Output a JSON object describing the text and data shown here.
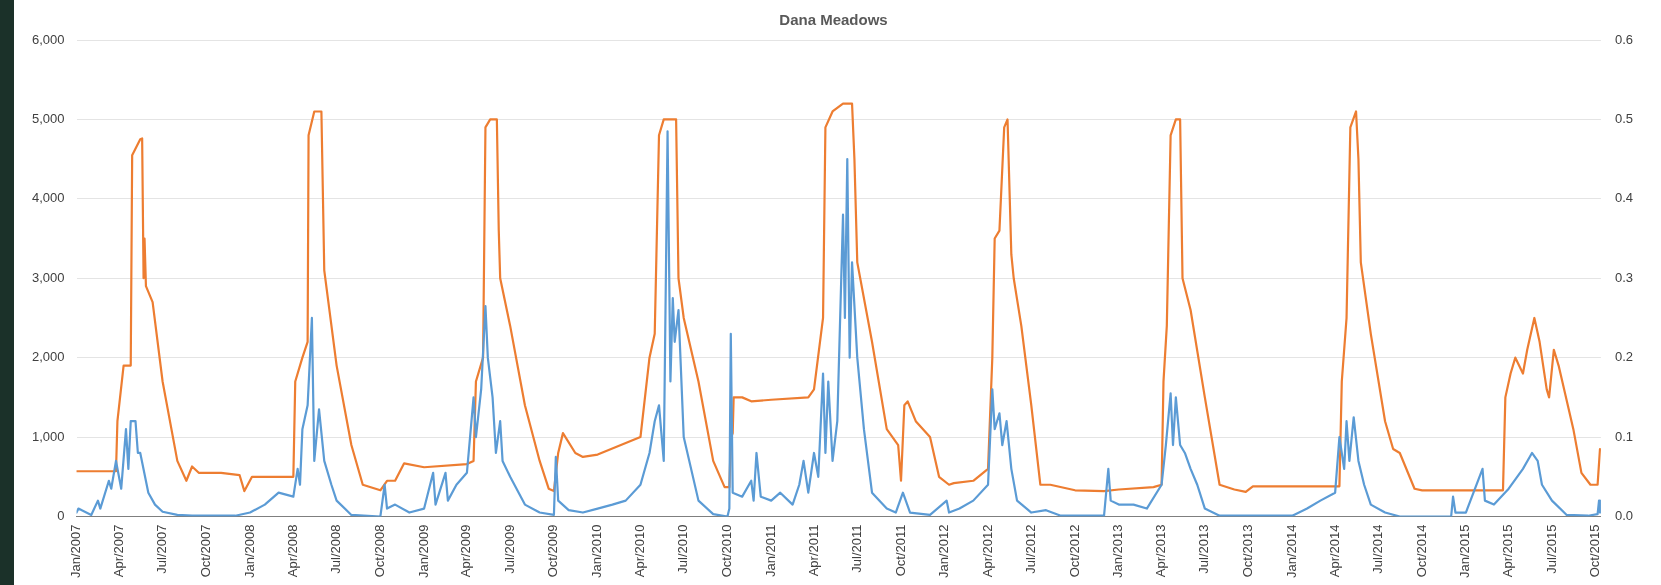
{
  "chart_data": {
    "type": "line",
    "title": "Dana Meadows",
    "grid": "y",
    "line_style": "solid",
    "marker": "none",
    "xlim": [
      "2007-01-01",
      "2015-10-12"
    ],
    "xticks": [
      {
        "value": "2007-01",
        "label": "Jan/2007"
      },
      {
        "value": "2007-04",
        "label": "Apr/2007"
      },
      {
        "value": "2007-07",
        "label": "Jul/2007"
      },
      {
        "value": "2007-10",
        "label": "Oct/2007"
      },
      {
        "value": "2008-01",
        "label": "Jan/2008"
      },
      {
        "value": "2008-04",
        "label": "Apr/2008"
      },
      {
        "value": "2008-07",
        "label": "Jul/2008"
      },
      {
        "value": "2008-10",
        "label": "Oct/2008"
      },
      {
        "value": "2009-01",
        "label": "Jan/2009"
      },
      {
        "value": "2009-04",
        "label": "Apr/2009"
      },
      {
        "value": "2009-07",
        "label": "Jul/2009"
      },
      {
        "value": "2009-10",
        "label": "Oct/2009"
      },
      {
        "value": "2010-01",
        "label": "Jan/2010"
      },
      {
        "value": "2010-04",
        "label": "Apr/2010"
      },
      {
        "value": "2010-07",
        "label": "Jul/2010"
      },
      {
        "value": "2010-10",
        "label": "Oct/2010"
      },
      {
        "value": "2011-01",
        "label": "Jan/2011"
      },
      {
        "value": "2011-04",
        "label": "Apr/2011"
      },
      {
        "value": "2011-07",
        "label": "Jul/2011"
      },
      {
        "value": "2011-10",
        "label": "Oct/2011"
      },
      {
        "value": "2012-01",
        "label": "Jan/2012"
      },
      {
        "value": "2012-04",
        "label": "Apr/2012"
      },
      {
        "value": "2012-07",
        "label": "Jul/2012"
      },
      {
        "value": "2012-10",
        "label": "Oct/2012"
      },
      {
        "value": "2013-01",
        "label": "Jan/2013"
      },
      {
        "value": "2013-04",
        "label": "Apr/2013"
      },
      {
        "value": "2013-07",
        "label": "Jul/2013"
      },
      {
        "value": "2013-10",
        "label": "Oct/2013"
      },
      {
        "value": "2014-01",
        "label": "Jan/2014"
      },
      {
        "value": "2014-04",
        "label": "Apr/2014"
      },
      {
        "value": "2014-07",
        "label": "Jul/2014"
      },
      {
        "value": "2014-10",
        "label": "Oct/2014"
      },
      {
        "value": "2015-01",
        "label": "Jan/2015"
      },
      {
        "value": "2015-04",
        "label": "Apr/2015"
      },
      {
        "value": "2015-07",
        "label": "Jul/2015"
      },
      {
        "value": "2015-10",
        "label": "Oct/2015"
      }
    ],
    "ylim": [
      0,
      6000
    ],
    "yticks": [
      {
        "value": 0,
        "label": "0"
      },
      {
        "value": 1000,
        "label": "1,000"
      },
      {
        "value": 2000,
        "label": "2,000"
      },
      {
        "value": 3000,
        "label": "3,000"
      },
      {
        "value": 4000,
        "label": "4,000"
      },
      {
        "value": 5000,
        "label": "5,000"
      },
      {
        "value": 6000,
        "label": "6,000"
      }
    ],
    "y2lim": [
      0,
      0.6
    ],
    "y2ticks": [
      {
        "value": 0,
        "label": "0.0"
      },
      {
        "value": 0.1,
        "label": "0.1"
      },
      {
        "value": 0.2,
        "label": "0.2"
      },
      {
        "value": 0.3,
        "label": "0.3"
      },
      {
        "value": 0.4,
        "label": "0.4"
      },
      {
        "value": 0.5,
        "label": "0.5"
      },
      {
        "value": 0.6,
        "label": "0.6"
      }
    ],
    "series": [
      {
        "color": "#5b9bd5",
        "x": [
          "2007-01-01",
          "2007-01-05",
          "2007-02-01",
          "2007-02-15",
          "2007-02-20",
          "2007-03-10",
          "2007-03-15",
          "2007-03-25",
          "2007-04-05",
          "2007-04-15",
          "2007-04-20",
          "2007-04-25",
          "2007-05-05",
          "2007-05-10",
          "2007-05-15",
          "2007-06-01",
          "2007-06-15",
          "2007-07-01",
          "2007-08-01",
          "2007-09-01",
          "2007-12-01",
          "2008-01-01",
          "2008-02-01",
          "2008-03-01",
          "2008-04-01",
          "2008-04-10",
          "2008-04-15",
          "2008-04-20",
          "2008-05-01",
          "2008-05-10",
          "2008-05-15",
          "2008-05-25",
          "2008-06-05",
          "2008-06-20",
          "2008-07-01",
          "2008-08-01",
          "2008-10-01",
          "2008-10-10",
          "2008-10-15",
          "2008-11-01",
          "2008-12-01",
          "2009-01-01",
          "2009-01-20",
          "2009-01-25",
          "2009-02-15",
          "2009-02-20",
          "2009-03-10",
          "2009-04-01",
          "2009-04-15",
          "2009-04-20",
          "2009-05-01",
          "2009-05-10",
          "2009-05-15",
          "2009-05-25",
          "2009-06-01",
          "2009-06-10",
          "2009-06-15",
          "2009-07-01",
          "2009-08-01",
          "2009-09-01",
          "2009-10-01",
          "2009-10-05",
          "2009-10-10",
          "2009-11-01",
          "2009-12-01",
          "2010-01-01",
          "2010-02-01",
          "2010-03-01",
          "2010-04-01",
          "2010-04-20",
          "2010-05-01",
          "2010-05-10",
          "2010-05-20",
          "2010-05-28",
          "2010-06-03",
          "2010-06-08",
          "2010-06-12",
          "2010-06-20",
          "2010-07-01",
          "2010-08-01",
          "2010-09-01",
          "2010-10-01",
          "2010-10-05",
          "2010-10-08",
          "2010-10-12",
          "2010-11-01",
          "2010-11-20",
          "2010-11-25",
          "2010-12-01",
          "2010-12-10",
          "2011-01-01",
          "2011-01-20",
          "2011-02-15",
          "2011-03-01",
          "2011-03-10",
          "2011-03-20",
          "2011-04-01",
          "2011-04-10",
          "2011-04-20",
          "2011-04-25",
          "2011-05-01",
          "2011-05-10",
          "2011-05-20",
          "2011-06-01",
          "2011-06-05",
          "2011-06-10",
          "2011-06-15",
          "2011-06-20",
          "2011-07-01",
          "2011-07-15",
          "2011-08-01",
          "2011-09-01",
          "2011-09-20",
          "2011-10-05",
          "2011-10-20",
          "2011-12-01",
          "2012-01-05",
          "2012-01-10",
          "2012-02-01",
          "2012-03-01",
          "2012-04-01",
          "2012-04-10",
          "2012-04-15",
          "2012-04-25",
          "2012-05-01",
          "2012-05-10",
          "2012-05-20",
          "2012-06-01",
          "2012-07-01",
          "2012-08-01",
          "2012-09-01",
          "2012-12-01",
          "2012-12-10",
          "2012-12-15",
          "2013-01-01",
          "2013-02-01",
          "2013-03-01",
          "2013-04-01",
          "2013-04-10",
          "2013-04-20",
          "2013-04-25",
          "2013-05-01",
          "2013-05-10",
          "2013-05-20",
          "2013-06-01",
          "2013-06-15",
          "2013-07-01",
          "2013-08-01",
          "2014-01-01",
          "2014-02-01",
          "2014-03-01",
          "2014-04-01",
          "2014-04-10",
          "2014-04-20",
          "2014-04-25",
          "2014-05-01",
          "2014-05-10",
          "2014-05-20",
          "2014-06-01",
          "2014-06-15",
          "2014-07-15",
          "2014-08-15",
          "2014-12-01",
          "2014-12-05",
          "2014-12-10",
          "2015-01-01",
          "2015-02-05",
          "2015-02-10",
          "2015-03-01",
          "2015-04-01",
          "2015-05-01",
          "2015-05-20",
          "2015-06-01",
          "2015-06-10",
          "2015-07-01",
          "2015-08-01",
          "2015-09-15",
          "2015-10-05",
          "2015-10-08",
          "2015-10-10"
        ],
        "values": [
          50,
          100,
          20,
          200,
          100,
          450,
          350,
          700,
          350,
          1100,
          600,
          1200,
          1200,
          800,
          800,
          300,
          150,
          60,
          20,
          10,
          10,
          50,
          150,
          300,
          250,
          600,
          400,
          1100,
          1400,
          2500,
          700,
          1350,
          700,
          400,
          200,
          20,
          0,
          400,
          100,
          150,
          50,
          100,
          550,
          150,
          550,
          200,
          400,
          550,
          1500,
          1000,
          1600,
          2650,
          2000,
          1500,
          800,
          1200,
          700,
          500,
          150,
          50,
          20,
          750,
          200,
          80,
          50,
          100,
          150,
          200,
          400,
          800,
          1200,
          1400,
          700,
          4850,
          1700,
          2750,
          2200,
          2600,
          1000,
          200,
          30,
          0,
          100,
          2300,
          300,
          250,
          450,
          200,
          800,
          250,
          200,
          300,
          150,
          400,
          700,
          300,
          800,
          500,
          1800,
          800,
          1700,
          700,
          1200,
          3800,
          2500,
          4500,
          2000,
          3200,
          2000,
          1100,
          300,
          100,
          50,
          300,
          50,
          20,
          200,
          50,
          100,
          200,
          400,
          1600,
          1100,
          1300,
          900,
          1200,
          600,
          200,
          50,
          80,
          10,
          10,
          600,
          200,
          150,
          150,
          100,
          400,
          900,
          1550,
          900,
          1500,
          900,
          800,
          600,
          400,
          100,
          10,
          10,
          100,
          200,
          300,
          1000,
          600,
          1200,
          700,
          1250,
          700,
          400,
          150,
          50,
          0,
          0,
          250,
          50,
          50,
          600,
          200,
          150,
          350,
          600,
          800,
          700,
          400,
          200,
          20,
          10,
          30,
          200,
          50
        ]
      },
      {
        "color": "#ed7d31",
        "axis": "y2",
        "x": [
          "2007-01-01",
          "2007-03-25",
          "2007-03-28",
          "2007-04-10",
          "2007-04-25",
          "2007-04-28",
          "2007-05-15",
          "2007-05-19",
          "2007-05-22",
          "2007-05-24",
          "2007-05-27",
          "2007-06-10",
          "2007-07-01",
          "2007-08-01",
          "2007-08-20",
          "2007-09-01",
          "2007-09-15",
          "2007-11-01",
          "2007-12-10",
          "2007-12-20",
          "2008-01-05",
          "2008-04-01",
          "2008-04-05",
          "2008-04-20",
          "2008-05-01",
          "2008-05-03",
          "2008-05-15",
          "2008-05-30",
          "2008-06-05",
          "2008-07-01",
          "2008-08-01",
          "2008-08-25",
          "2008-10-01",
          "2008-10-15",
          "2008-11-01",
          "2008-11-20",
          "2009-01-01",
          "2009-04-01",
          "2009-04-15",
          "2009-04-20",
          "2009-05-05",
          "2009-05-10",
          "2009-05-20",
          "2009-06-03",
          "2009-06-07",
          "2009-06-10",
          "2009-07-01",
          "2009-08-01",
          "2009-09-01",
          "2009-09-20",
          "2009-10-01",
          "2009-10-10",
          "2009-10-20",
          "2009-11-15",
          "2009-12-01",
          "2010-01-01",
          "2010-04-01",
          "2010-04-20",
          "2010-05-01",
          "2010-05-10",
          "2010-05-20",
          "2010-06-15",
          "2010-06-20",
          "2010-07-01",
          "2010-08-01",
          "2010-09-01",
          "2010-09-25",
          "2010-10-05",
          "2010-10-08",
          "2010-10-12",
          "2010-10-14",
          "2010-11-01",
          "2010-11-20",
          "2011-01-01",
          "2011-03-20",
          "2011-04-01",
          "2011-04-20",
          "2011-04-25",
          "2011-05-10",
          "2011-06-01",
          "2011-06-20",
          "2011-06-25",
          "2011-07-01",
          "2011-08-01",
          "2011-09-01",
          "2011-09-25",
          "2011-10-01",
          "2011-10-08",
          "2011-10-15",
          "2011-11-01",
          "2011-12-01",
          "2011-12-20",
          "2012-01-10",
          "2012-01-20",
          "2012-03-01",
          "2012-04-01",
          "2012-04-10",
          "2012-04-15",
          "2012-04-25",
          "2012-05-05",
          "2012-05-12",
          "2012-05-20",
          "2012-05-25",
          "2012-06-10",
          "2012-07-01",
          "2012-07-20",
          "2012-08-10",
          "2012-10-01",
          "2012-12-01",
          "2013-01-01",
          "2013-03-15",
          "2013-04-01",
          "2013-04-05",
          "2013-04-12",
          "2013-04-20",
          "2013-05-01",
          "2013-05-10",
          "2013-05-15",
          "2013-06-01",
          "2013-07-01",
          "2013-08-01",
          "2013-09-01",
          "2013-09-25",
          "2013-10-10",
          "2014-01-01",
          "2014-04-10",
          "2014-04-15",
          "2014-04-25",
          "2014-05-03",
          "2014-05-15",
          "2014-05-20",
          "2014-05-25",
          "2014-06-15",
          "2014-07-15",
          "2014-08-01",
          "2014-08-15",
          "2014-09-15",
          "2014-10-01",
          "2015-03-20",
          "2015-03-25",
          "2015-04-05",
          "2015-04-15",
          "2015-05-01",
          "2015-05-10",
          "2015-05-25",
          "2015-06-05",
          "2015-06-20",
          "2015-06-25",
          "2015-07-05",
          "2015-07-15",
          "2015-08-15",
          "2015-09-01",
          "2015-09-20",
          "2015-10-05",
          "2015-10-10"
        ],
        "values": [
          0.057,
          0.057,
          0.12,
          0.19,
          0.19,
          0.455,
          0.475,
          0.476,
          0.3,
          0.35,
          0.29,
          0.27,
          0.17,
          0.07,
          0.045,
          0.063,
          0.055,
          0.055,
          0.052,
          0.032,
          0.05,
          0.05,
          0.17,
          0.2,
          0.22,
          0.48,
          0.51,
          0.51,
          0.31,
          0.19,
          0.09,
          0.04,
          0.033,
          0.045,
          0.045,
          0.067,
          0.062,
          0.066,
          0.07,
          0.17,
          0.2,
          0.49,
          0.5,
          0.5,
          0.36,
          0.3,
          0.24,
          0.14,
          0.07,
          0.035,
          0.032,
          0.08,
          0.105,
          0.08,
          0.075,
          0.078,
          0.1,
          0.2,
          0.23,
          0.48,
          0.5,
          0.5,
          0.3,
          0.25,
          0.17,
          0.07,
          0.037,
          0.037,
          0.098,
          0.105,
          0.15,
          0.15,
          0.145,
          0.147,
          0.15,
          0.16,
          0.25,
          0.49,
          0.51,
          0.52,
          0.52,
          0.45,
          0.32,
          0.22,
          0.11,
          0.09,
          0.045,
          0.14,
          0.145,
          0.12,
          0.1,
          0.05,
          0.04,
          0.042,
          0.045,
          0.06,
          0.2,
          0.35,
          0.36,
          0.49,
          0.5,
          0.33,
          0.3,
          0.24,
          0.14,
          0.04,
          0.04,
          0.033,
          0.032,
          0.034,
          0.037,
          0.04,
          0.17,
          0.24,
          0.48,
          0.5,
          0.5,
          0.3,
          0.26,
          0.15,
          0.04,
          0.034,
          0.031,
          0.038,
          0.038,
          0.038,
          0.17,
          0.25,
          0.49,
          0.51,
          0.45,
          0.32,
          0.23,
          0.12,
          0.085,
          0.08,
          0.035,
          0.033,
          0.033,
          0.15,
          0.18,
          0.2,
          0.18,
          0.21,
          0.25,
          0.22,
          0.16,
          0.15,
          0.21,
          0.19,
          0.11,
          0.055,
          0.04,
          0.04,
          0.085
        ]
      }
    ]
  }
}
